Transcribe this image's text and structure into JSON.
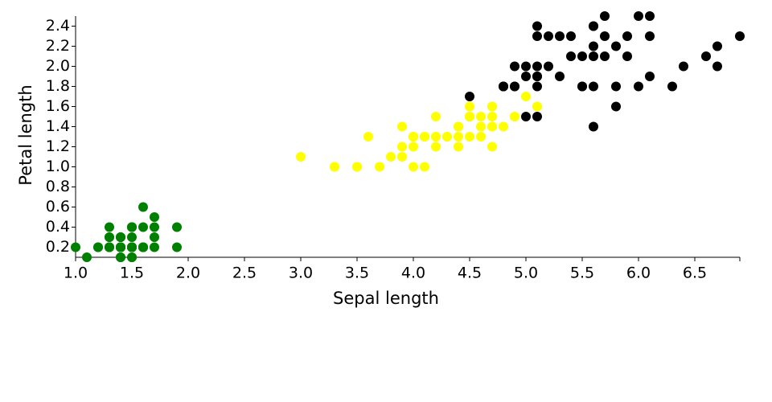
{
  "chart_data": {
    "type": "scatter",
    "x_label": "Sepal length",
    "y_label": "Petal length",
    "xlim": [
      1,
      6.9
    ],
    "ylim": [
      0.1,
      2.5
    ],
    "xticks": [
      {
        "value": 1,
        "label": "1.0"
      },
      1.5,
      {
        "value": 2,
        "label": "2.0"
      },
      2.5,
      {
        "value": 3,
        "label": "3.0"
      },
      3.5,
      {
        "value": 4,
        "label": "4.0"
      },
      4.5,
      {
        "value": 5,
        "label": "5.0"
      },
      5.5,
      {
        "value": 6,
        "label": "6.0"
      },
      6.5
    ],
    "yticks": [
      0.2,
      0.4,
      0.6,
      0.8,
      {
        "value": 1,
        "label": "1.0"
      },
      1.2,
      1.4,
      1.6,
      1.8,
      {
        "value": 2,
        "label": "2.0"
      },
      2.2,
      2.4
    ],
    "series": [
      {
        "color": "green",
        "x": [
          1.4,
          1.4,
          1.3,
          1.5,
          1.4,
          1.7,
          1.4,
          1.5,
          1.4,
          1.5,
          1.5,
          1.6,
          1.4,
          1.1,
          1.2,
          1.5,
          1.3,
          1.4,
          1.7,
          1.5,
          1.7,
          1.5,
          1.0,
          1.7,
          1.9,
          1.6,
          1.6,
          1.5,
          1.4,
          1.6,
          1.6,
          1.5,
          1.5,
          1.4,
          1.5,
          1.2,
          1.3,
          1.4,
          1.3,
          1.5,
          1.3,
          1.3,
          1.3,
          1.6,
          1.9,
          1.4,
          1.6,
          1.4,
          1.5,
          1.4
        ],
        "values": [
          0.2,
          0.2,
          0.2,
          0.2,
          0.2,
          0.4,
          0.3,
          0.2,
          0.2,
          0.1,
          0.2,
          0.2,
          0.1,
          0.1,
          0.2,
          0.4,
          0.4,
          0.3,
          0.3,
          0.3,
          0.2,
          0.4,
          0.2,
          0.5,
          0.2,
          0.2,
          0.4,
          0.2,
          0.2,
          0.2,
          0.2,
          0.4,
          0.1,
          0.2,
          0.2,
          0.2,
          0.2,
          0.1,
          0.2,
          0.2,
          0.3,
          0.3,
          0.2,
          0.6,
          0.4,
          0.3,
          0.2,
          0.2,
          0.2,
          0.2
        ]
      },
      {
        "color": "yellow",
        "x": [
          4.7,
          4.5,
          4.9,
          4.0,
          4.6,
          4.5,
          4.7,
          3.3,
          4.6,
          3.9,
          3.5,
          4.2,
          4.0,
          4.7,
          3.6,
          4.4,
          4.5,
          4.1,
          4.5,
          3.9,
          4.0,
          4.9,
          4.7,
          4.3,
          4.4,
          4.8,
          5.0,
          4.5,
          3.5,
          3.8,
          3.7,
          3.9,
          5.1,
          4.5,
          4.5,
          4.7,
          4.4,
          4.1,
          4.0,
          4.4,
          4.6,
          4.0,
          3.3,
          4.2,
          4.2,
          4.2,
          4.3,
          3.0,
          4.1
        ],
        "values": [
          1.4,
          1.5,
          1.5,
          1.3,
          1.5,
          1.3,
          1.6,
          1.0,
          1.3,
          1.4,
          1.0,
          1.5,
          1.0,
          1.4,
          1.3,
          1.4,
          1.5,
          1.0,
          1.5,
          1.1,
          1.3,
          1.5,
          1.2,
          1.3,
          1.4,
          1.4,
          1.7,
          1.5,
          1.0,
          1.1,
          1.0,
          1.2,
          1.6,
          1.5,
          1.6,
          1.5,
          1.3,
          1.3,
          1.3,
          1.2,
          1.4,
          1.2,
          1.0,
          1.3,
          1.2,
          1.3,
          1.3,
          1.1,
          1.3
        ]
      },
      {
        "color": "black",
        "x": [
          6.0,
          5.1,
          5.9,
          5.6,
          5.8,
          6.6,
          4.5,
          6.3,
          5.8,
          6.1,
          5.1,
          5.3,
          5.5,
          5.0,
          5.1,
          5.3,
          5.5,
          6.7,
          6.9,
          5.0,
          5.7,
          4.9,
          6.7,
          4.9,
          5.7,
          6.0,
          4.8,
          4.9,
          5.6,
          5.8,
          6.1,
          6.4,
          5.6,
          5.1,
          5.6,
          6.1,
          5.6,
          5.5,
          4.8,
          5.4,
          5.6,
          5.1,
          5.1,
          5.9,
          5.7,
          5.2,
          5.0,
          5.2,
          5.4,
          5.1,
          4.8
        ],
        "values": [
          2.5,
          1.9,
          2.1,
          1.8,
          2.2,
          2.1,
          1.7,
          1.8,
          1.8,
          2.5,
          2.0,
          1.9,
          2.1,
          2.0,
          2.4,
          2.3,
          1.8,
          2.2,
          2.3,
          1.5,
          2.3,
          2.0,
          2.0,
          1.8,
          2.1,
          1.8,
          1.8,
          1.8,
          2.1,
          1.6,
          1.9,
          2.0,
          2.2,
          1.5,
          1.4,
          2.3,
          2.4,
          1.8,
          1.8,
          2.1,
          2.4,
          2.3,
          1.9,
          2.3,
          2.5,
          2.3,
          1.9,
          2.0,
          2.3,
          1.8,
          1.8
        ]
      }
    ]
  }
}
